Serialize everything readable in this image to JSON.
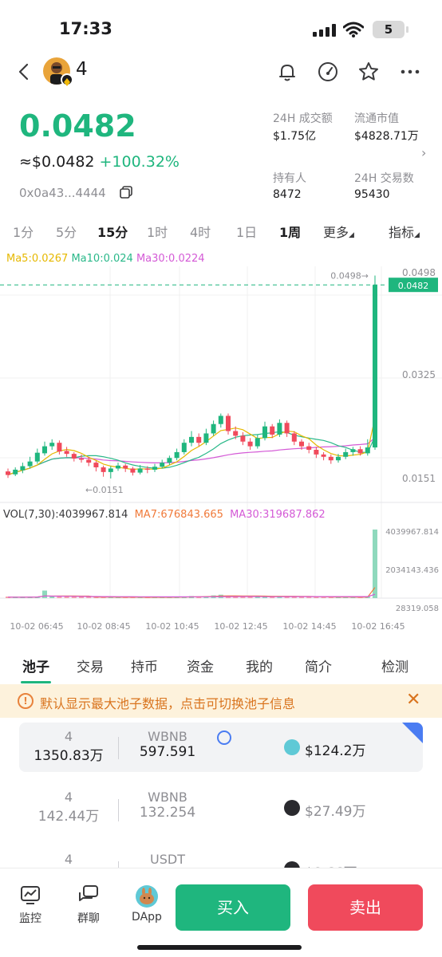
{
  "status": {
    "time": "17:33",
    "battery": "5"
  },
  "header": {
    "token_name": "4"
  },
  "price": {
    "main": "0.0482",
    "usd": "≈$0.0482",
    "change": "+100.32%",
    "address": "0x0a43...4444"
  },
  "stats": {
    "volume_label": "24H 成交额",
    "volume_value": "$1.75亿",
    "mcap_label": "流通市值",
    "mcap_value": "$4828.71万",
    "holders_label": "持有人",
    "holders_value": "8472",
    "txns_label": "24H 交易数",
    "txns_value": "95430"
  },
  "timeframes": [
    "1分",
    "5分",
    "15分",
    "1时",
    "4时",
    "1日",
    "1周",
    "更多",
    "指标"
  ],
  "ma": {
    "ma5": "Ma5:0.0267",
    "ma10": "Ma10:0.024",
    "ma30": "Ma30:0.0224"
  },
  "vol": {
    "vol": "VOL(7,30):4039967.814",
    "ma7": "MA7:676843.665",
    "ma30": "MA30:319687.862"
  },
  "colors": {
    "up": "#1fb67e",
    "down": "#f04a5c",
    "ma5": "#e6b800",
    "ma10": "#29b889",
    "ma30": "#d45ad6"
  },
  "chart_data": {
    "type": "candlestick",
    "price_axis_labels": [
      "0.0498",
      "0.0325",
      "0.0151"
    ],
    "high_marker": "0.0498→",
    "low_marker": "←0.0151",
    "current_price_tag": "0.0482",
    "vol_axis_labels": [
      "4039967.814",
      "2034143.436",
      "28319.058"
    ],
    "x_labels": [
      "10-02 06:45",
      "10-02 08:45",
      "10-02 10:45",
      "10-02 12:45",
      "10-02 14:45",
      "10-02 16:45"
    ],
    "ylim": [
      0.0125,
      0.05
    ],
    "candles": [
      {
        "o": 0.0163,
        "c": 0.0157,
        "h": 0.0168,
        "l": 0.0152
      },
      {
        "o": 0.0158,
        "c": 0.0166,
        "h": 0.017,
        "l": 0.0155
      },
      {
        "o": 0.0165,
        "c": 0.0172,
        "h": 0.0178,
        "l": 0.016
      },
      {
        "o": 0.0172,
        "c": 0.018,
        "h": 0.0188,
        "l": 0.0168
      },
      {
        "o": 0.018,
        "c": 0.0195,
        "h": 0.0202,
        "l": 0.0176
      },
      {
        "o": 0.0194,
        "c": 0.0206,
        "h": 0.0214,
        "l": 0.019
      },
      {
        "o": 0.0206,
        "c": 0.0212,
        "h": 0.0218,
        "l": 0.02
      },
      {
        "o": 0.0212,
        "c": 0.0197,
        "h": 0.0216,
        "l": 0.0192
      },
      {
        "o": 0.0198,
        "c": 0.0193,
        "h": 0.0205,
        "l": 0.0188
      },
      {
        "o": 0.0193,
        "c": 0.0185,
        "h": 0.0196,
        "l": 0.018
      },
      {
        "o": 0.0185,
        "c": 0.0183,
        "h": 0.0192,
        "l": 0.0178
      },
      {
        "o": 0.0183,
        "c": 0.0178,
        "h": 0.0188,
        "l": 0.0172
      },
      {
        "o": 0.0178,
        "c": 0.017,
        "h": 0.0181,
        "l": 0.0163
      },
      {
        "o": 0.017,
        "c": 0.0162,
        "h": 0.0173,
        "l": 0.0154
      },
      {
        "o": 0.0162,
        "c": 0.0168,
        "h": 0.0172,
        "l": 0.0151
      },
      {
        "o": 0.0168,
        "c": 0.0173,
        "h": 0.0178,
        "l": 0.0164
      },
      {
        "o": 0.0173,
        "c": 0.0168,
        "h": 0.0176,
        "l": 0.0162
      },
      {
        "o": 0.0168,
        "c": 0.0161,
        "h": 0.0171,
        "l": 0.0156
      },
      {
        "o": 0.0161,
        "c": 0.0168,
        "h": 0.0174,
        "l": 0.0158
      },
      {
        "o": 0.0168,
        "c": 0.0166,
        "h": 0.0172,
        "l": 0.016
      },
      {
        "o": 0.0166,
        "c": 0.0171,
        "h": 0.0176,
        "l": 0.0162
      },
      {
        "o": 0.0171,
        "c": 0.0178,
        "h": 0.0183,
        "l": 0.0168
      },
      {
        "o": 0.0178,
        "c": 0.0186,
        "h": 0.019,
        "l": 0.0174
      },
      {
        "o": 0.0186,
        "c": 0.0196,
        "h": 0.0202,
        "l": 0.0182
      },
      {
        "o": 0.0196,
        "c": 0.0212,
        "h": 0.0218,
        "l": 0.0192
      },
      {
        "o": 0.0212,
        "c": 0.0222,
        "h": 0.0232,
        "l": 0.0206
      },
      {
        "o": 0.0222,
        "c": 0.0212,
        "h": 0.0228,
        "l": 0.0206
      },
      {
        "o": 0.0212,
        "c": 0.0228,
        "h": 0.0236,
        "l": 0.0208
      },
      {
        "o": 0.0228,
        "c": 0.0244,
        "h": 0.025,
        "l": 0.0224
      },
      {
        "o": 0.0244,
        "c": 0.0258,
        "h": 0.0262,
        "l": 0.0238
      },
      {
        "o": 0.0258,
        "c": 0.0232,
        "h": 0.0262,
        "l": 0.0226
      },
      {
        "o": 0.0232,
        "c": 0.0224,
        "h": 0.024,
        "l": 0.0218
      },
      {
        "o": 0.0224,
        "c": 0.0214,
        "h": 0.023,
        "l": 0.0208
      },
      {
        "o": 0.0214,
        "c": 0.0206,
        "h": 0.022,
        "l": 0.02
      },
      {
        "o": 0.0206,
        "c": 0.022,
        "h": 0.0226,
        "l": 0.0202
      },
      {
        "o": 0.022,
        "c": 0.024,
        "h": 0.0248,
        "l": 0.0216
      },
      {
        "o": 0.024,
        "c": 0.0226,
        "h": 0.0244,
        "l": 0.022
      },
      {
        "o": 0.0226,
        "c": 0.0246,
        "h": 0.0252,
        "l": 0.0222
      },
      {
        "o": 0.0246,
        "c": 0.0228,
        "h": 0.025,
        "l": 0.0222
      },
      {
        "o": 0.0228,
        "c": 0.0214,
        "h": 0.0232,
        "l": 0.0208
      },
      {
        "o": 0.0214,
        "c": 0.0206,
        "h": 0.0218,
        "l": 0.02
      },
      {
        "o": 0.0206,
        "c": 0.02,
        "h": 0.0212,
        "l": 0.0194
      },
      {
        "o": 0.02,
        "c": 0.0192,
        "h": 0.0205,
        "l": 0.0186
      },
      {
        "o": 0.0192,
        "c": 0.0188,
        "h": 0.0196,
        "l": 0.0182
      },
      {
        "o": 0.0188,
        "c": 0.0182,
        "h": 0.0192,
        "l": 0.0176
      },
      {
        "o": 0.0182,
        "c": 0.0188,
        "h": 0.0193,
        "l": 0.0178
      },
      {
        "o": 0.0188,
        "c": 0.0196,
        "h": 0.0202,
        "l": 0.0184
      },
      {
        "o": 0.0196,
        "c": 0.0201,
        "h": 0.0205,
        "l": 0.019
      },
      {
        "o": 0.0201,
        "c": 0.0194,
        "h": 0.0206,
        "l": 0.019
      },
      {
        "o": 0.0194,
        "c": 0.0204,
        "h": 0.0218,
        "l": 0.019
      },
      {
        "o": 0.0204,
        "c": 0.0482,
        "h": 0.0498,
        "l": 0.02
      }
    ],
    "volumes": [
      0.015,
      0.012,
      0.014,
      0.02,
      0.018,
      0.11,
      0.016,
      0.02,
      0.017,
      0.014,
      0.012,
      0.015,
      0.018,
      0.016,
      0.013,
      0.012,
      0.014,
      0.011,
      0.015,
      0.012,
      0.013,
      0.014,
      0.012,
      0.02,
      0.022,
      0.03,
      0.025,
      0.028,
      0.04,
      0.05,
      0.03,
      0.026,
      0.022,
      0.02,
      0.024,
      0.035,
      0.03,
      0.028,
      0.026,
      0.022,
      0.018,
      0.016,
      0.015,
      0.014,
      0.012,
      0.014,
      0.016,
      0.015,
      0.013,
      0.02,
      1.0
    ],
    "vol_max": 4039967.814
  },
  "tabs": [
    "池子",
    "交易",
    "持币",
    "资金",
    "我的",
    "简介",
    "检测"
  ],
  "notice": "默认显示最大池子数据，点击可切换池子信息",
  "pools": [
    {
      "token": "4",
      "token_amt": "1350.83万",
      "pair": "WBNB",
      "pair_amt": "597.591",
      "tvl": "$124.2万"
    },
    {
      "token": "4",
      "token_amt": "142.44万",
      "pair": "WBNB",
      "pair_amt": "132.254",
      "tvl": "$27.49万"
    },
    {
      "token": "4",
      "token_amt": "",
      "pair": "USDT",
      "pair_amt": "",
      "tvl": "$8.66万"
    }
  ],
  "bottom": {
    "monitor": "监控",
    "chat": "群聊",
    "dapp": "DApp",
    "buy": "买入",
    "sell": "卖出"
  }
}
